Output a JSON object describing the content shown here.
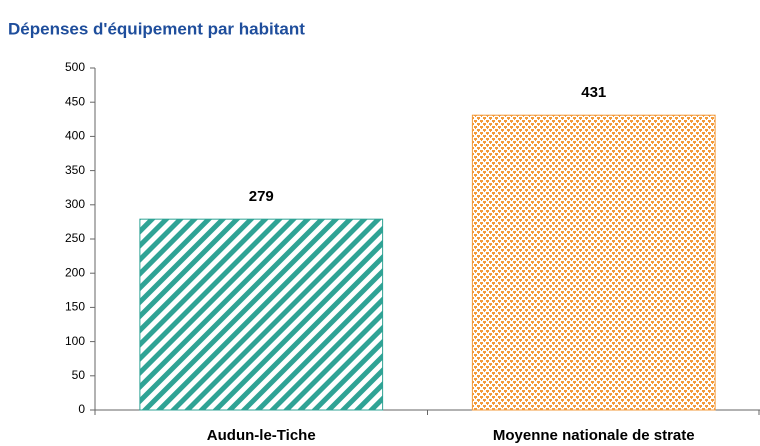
{
  "chart_data": {
    "type": "bar",
    "title": "Dépenses d'équipement par habitant",
    "categories": [
      "Audun-le-Tiche",
      "Moyenne nationale de strate"
    ],
    "values": [
      279,
      431
    ],
    "colors": [
      "#2fa395",
      "#f39a3a"
    ],
    "ylim": [
      0,
      500
    ],
    "yticks": [
      0,
      50,
      100,
      150,
      200,
      250,
      300,
      350,
      400,
      450,
      500
    ],
    "grid": false
  }
}
